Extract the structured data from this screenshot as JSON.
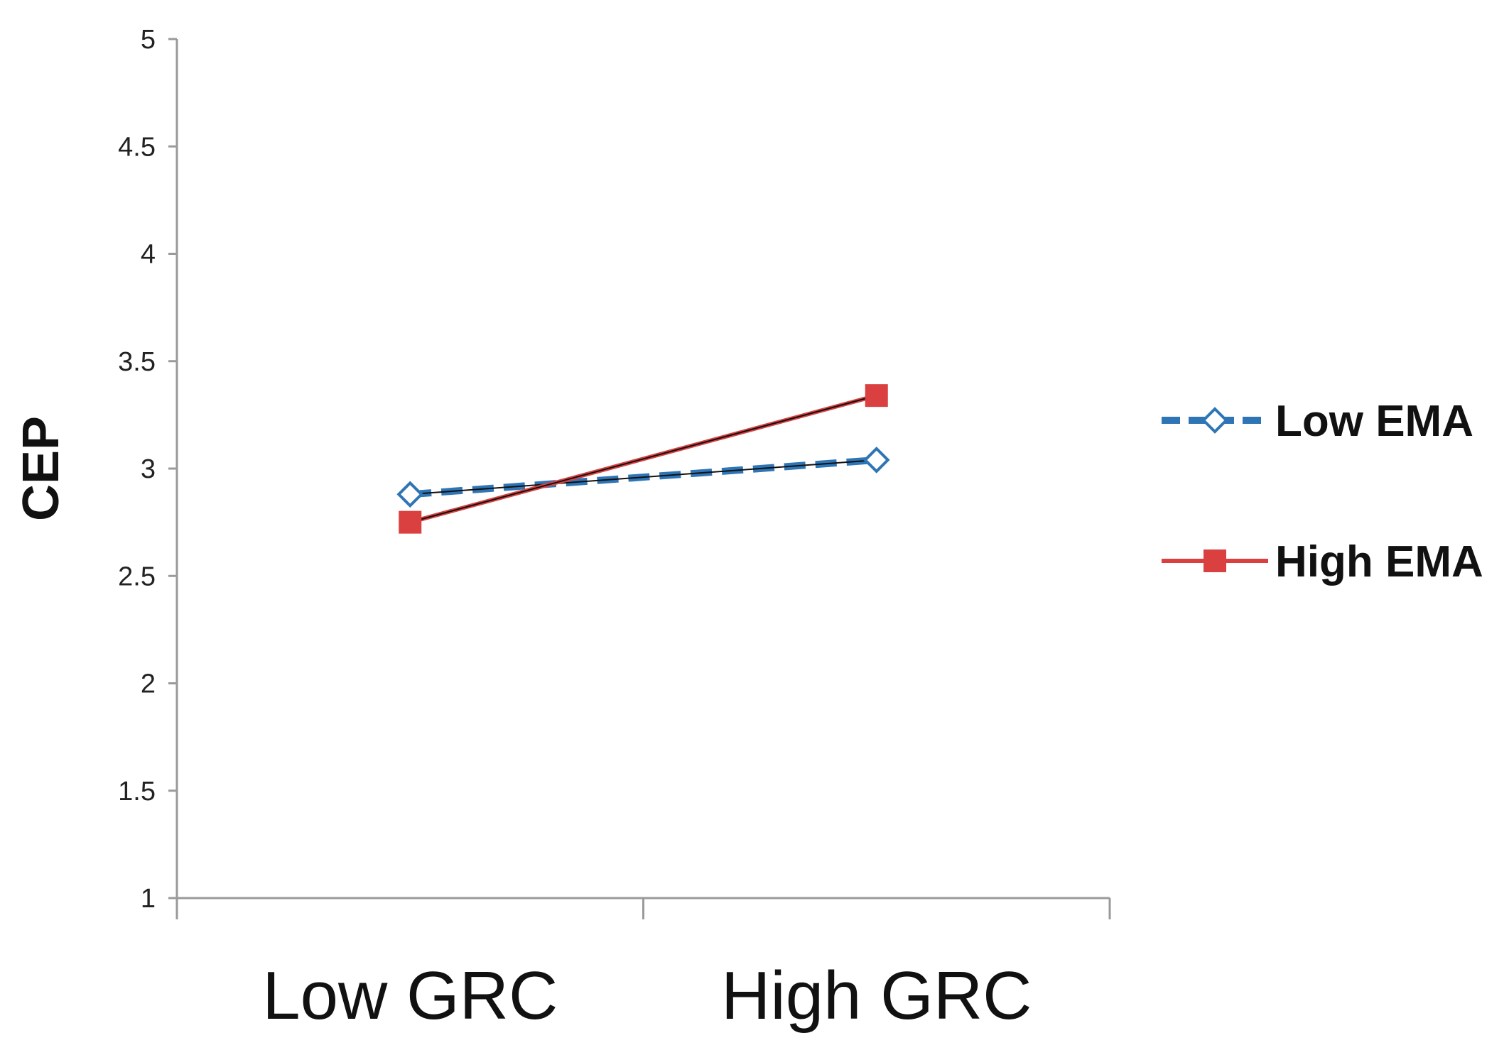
{
  "chart_data": {
    "type": "line",
    "title": "",
    "xlabel": "",
    "ylabel": "CEP",
    "categories": [
      "Low GRC",
      "High GRC"
    ],
    "ylim": [
      1,
      5
    ],
    "yticks": [
      "1",
      "1.5",
      "2",
      "2.5",
      "3",
      "3.5",
      "4",
      "4.5",
      "5"
    ],
    "grid": false,
    "legend_position": "right",
    "series": [
      {
        "name": "Low EMA",
        "values": [
          2.88,
          3.04
        ],
        "color": "#2E75B6",
        "line_style": "dashed",
        "marker": "hollow-diamond"
      },
      {
        "name": "High EMA",
        "values": [
          2.75,
          3.34
        ],
        "color": "#D9403F",
        "line_style": "solid",
        "marker": "filled-square"
      }
    ]
  }
}
